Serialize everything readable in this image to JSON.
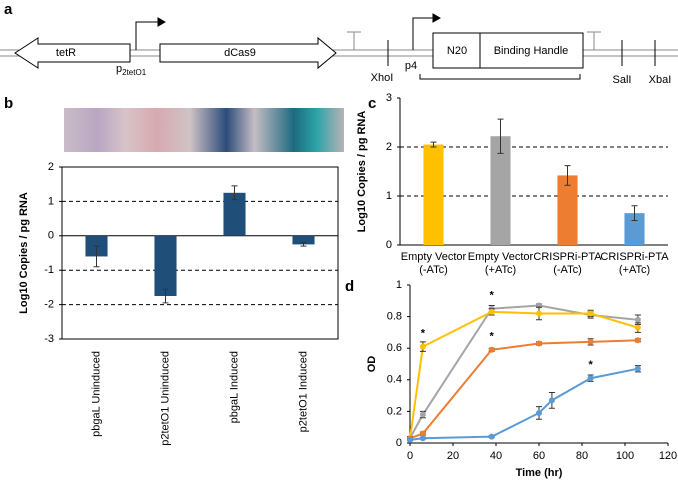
{
  "panel_labels": [
    "a",
    "b",
    "c",
    "d"
  ],
  "diagram": {
    "tetR": "tetR",
    "promoter1": {
      "p": "p",
      "sub": "2tetO1"
    },
    "dCas9": "dCas9",
    "xhoI": "XhoI",
    "p4": "p4",
    "n20": "N20",
    "handle": "Binding Handle",
    "salI": "SalI",
    "xbaI": "XbaI"
  },
  "chart_data": [
    {
      "type": "bar",
      "ylabel": "Log10 Copies / pg RNA",
      "categories": [
        "pbgaL Uninduced",
        "p2tetO1 Uninduced",
        "pbgaL Induced",
        "p2tetO1 Induced"
      ],
      "values": [
        -0.6,
        -1.75,
        1.25,
        -0.25
      ],
      "errors": [
        0.3,
        0.2,
        0.2,
        0.05
      ],
      "colors": [
        "#1f4e79",
        "#1f4e79",
        "#1f4e79",
        "#1f4e79"
      ],
      "ylim": [
        -3,
        2
      ],
      "yticks": [
        -3,
        -2,
        -1,
        0,
        1,
        2
      ],
      "grid": true
    },
    {
      "type": "bar",
      "ylabel": "Log10 Copies / pg RNA",
      "categories": [
        "Empty Vector (-ATc)",
        "Empty Vector (+ATc)",
        "CRISPRi-PTA (-ATc)",
        "CRISPRi-PTA (+ATc)"
      ],
      "values": [
        2.05,
        2.22,
        1.42,
        0.65
      ],
      "errors": [
        0.05,
        0.35,
        0.2,
        0.15
      ],
      "colors": [
        "#ffc000",
        "#a5a5a5",
        "#ed7d31",
        "#5b9bd5"
      ],
      "ylim": [
        0,
        3
      ],
      "yticks": [
        0,
        1,
        2,
        3
      ],
      "grid": true
    },
    {
      "type": "line",
      "xlabel": "Time (hr)",
      "ylabel": "OD",
      "series": [
        {
          "color": "#a5a5a5",
          "x": [
            0,
            6,
            38,
            60,
            84,
            106
          ],
          "values": [
            0.03,
            0.18,
            0.85,
            0.87,
            0.81,
            0.78
          ],
          "errors": [
            0.01,
            0.02,
            0.02,
            0.01,
            0.02,
            0.03
          ]
        },
        {
          "color": "#ffc000",
          "x": [
            0,
            6,
            38,
            60,
            84,
            106
          ],
          "values": [
            0.03,
            0.61,
            0.83,
            0.82,
            0.82,
            0.73
          ],
          "errors": [
            0.01,
            0.03,
            0.02,
            0.04,
            0.02,
            0.03
          ]
        },
        {
          "color": "#ed7d31",
          "x": [
            0,
            6,
            38,
            60,
            84,
            106
          ],
          "values": [
            0.03,
            0.06,
            0.59,
            0.63,
            0.64,
            0.65
          ],
          "errors": [
            0.01,
            0.01,
            0.01,
            0.01,
            0.02,
            0.01
          ]
        },
        {
          "color": "#5b9bd5",
          "x": [
            0,
            6,
            38,
            60,
            66,
            84,
            106
          ],
          "values": [
            0.02,
            0.03,
            0.04,
            0.19,
            0.27,
            0.41,
            0.47
          ],
          "errors": [
            0.005,
            0.005,
            0.005,
            0.04,
            0.05,
            0.02,
            0.02
          ]
        }
      ],
      "annotations": [
        {
          "text": "*",
          "x": 6,
          "y": 0.61
        },
        {
          "text": "*",
          "x": 38,
          "y": 0.85
        },
        {
          "text": "*",
          "x": 38,
          "y": 0.59
        },
        {
          "text": "*",
          "x": 84,
          "y": 0.41
        }
      ],
      "xlim": [
        0,
        120
      ],
      "xticks": [
        0,
        20,
        40,
        60,
        80,
        100,
        120
      ],
      "ylim": [
        0,
        1
      ],
      "yticks": [
        0,
        0.2,
        0.4,
        0.6,
        0.8,
        1
      ]
    }
  ]
}
